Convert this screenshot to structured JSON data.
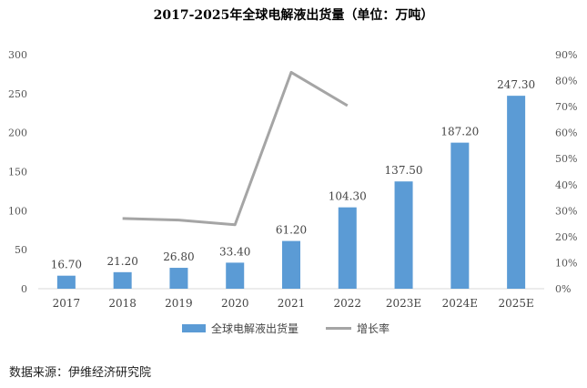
{
  "title": "2017-2025年全球电解液出货量（单位：万吨）",
  "source": "数据来源：伊维经济研究院",
  "chart_data": {
    "type": "bar",
    "categories": [
      "2017",
      "2018",
      "2019",
      "2020",
      "2021",
      "2022",
      "2023E",
      "2024E",
      "2025E"
    ],
    "series": [
      {
        "name": "全球电解液出货量",
        "type": "bar",
        "color": "#5b9bd5",
        "values": [
          16.7,
          21.2,
          26.8,
          33.4,
          61.2,
          104.3,
          137.5,
          187.2,
          247.3
        ],
        "labels": [
          "16.70",
          "21.20",
          "26.80",
          "33.40",
          "61.20",
          "104.30",
          "137.50",
          "187.20",
          "247.30"
        ]
      },
      {
        "name": "增长率",
        "type": "line",
        "axis": "right",
        "color": "#a5a5a5",
        "values": [
          null,
          27.0,
          26.4,
          24.6,
          83.2,
          70.4,
          null,
          null,
          null
        ]
      }
    ],
    "y_left": {
      "ylim": [
        0,
        300
      ],
      "ticks": [
        "0",
        "50",
        "100",
        "150",
        "200",
        "250",
        "300"
      ]
    },
    "y_right": {
      "ylim": [
        0,
        90
      ],
      "ticks": [
        "0%",
        "10%",
        "20%",
        "30%",
        "40%",
        "50%",
        "60%",
        "70%",
        "80%",
        "90%"
      ]
    },
    "legend_position": "bottom",
    "grid": false
  }
}
